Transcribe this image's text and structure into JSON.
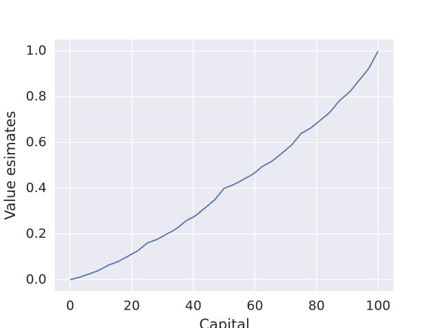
{
  "chart_data": {
    "type": "line",
    "x_label": "Capital",
    "y_label": "Value esimates",
    "x": [
      0,
      1,
      2,
      3,
      4,
      5,
      6,
      7,
      8,
      9,
      10,
      11,
      12,
      13,
      14,
      15,
      16,
      17,
      18,
      19,
      20,
      21,
      22,
      23,
      24,
      25,
      26,
      27,
      28,
      29,
      30,
      31,
      32,
      33,
      34,
      35,
      36,
      37,
      38,
      39,
      40,
      41,
      42,
      43,
      44,
      45,
      46,
      47,
      48,
      49,
      50,
      51,
      52,
      53,
      54,
      55,
      56,
      57,
      58,
      59,
      60,
      61,
      62,
      63,
      64,
      65,
      66,
      67,
      68,
      69,
      70,
      71,
      72,
      73,
      74,
      75,
      76,
      77,
      78,
      79,
      80,
      81,
      82,
      83,
      84,
      85,
      86,
      87,
      88,
      89,
      90,
      91,
      92,
      93,
      94,
      95,
      96,
      97,
      98,
      99,
      100
    ],
    "series": [
      {
        "color": "#4c72b0",
        "values": [
          0,
          0.003,
          0.007,
          0.01,
          0.015,
          0.02,
          0.024,
          0.029,
          0.034,
          0.039,
          0.046,
          0.053,
          0.06,
          0.067,
          0.071,
          0.076,
          0.082,
          0.09,
          0.097,
          0.104,
          0.112,
          0.119,
          0.127,
          0.138,
          0.149,
          0.16,
          0.165,
          0.17,
          0.175,
          0.182,
          0.189,
          0.197,
          0.204,
          0.211,
          0.219,
          0.228,
          0.239,
          0.251,
          0.26,
          0.267,
          0.274,
          0.283,
          0.294,
          0.305,
          0.316,
          0.327,
          0.339,
          0.35,
          0.367,
          0.383,
          0.4,
          0.405,
          0.41,
          0.415,
          0.422,
          0.429,
          0.437,
          0.444,
          0.451,
          0.459,
          0.468,
          0.479,
          0.491,
          0.5,
          0.507,
          0.514,
          0.523,
          0.534,
          0.545,
          0.556,
          0.567,
          0.579,
          0.59,
          0.607,
          0.623,
          0.64,
          0.647,
          0.655,
          0.662,
          0.673,
          0.684,
          0.695,
          0.706,
          0.717,
          0.728,
          0.743,
          0.759,
          0.776,
          0.79,
          0.801,
          0.812,
          0.825,
          0.841,
          0.858,
          0.875,
          0.891,
          0.908,
          0.925,
          0.95,
          0.975,
          1
        ]
      }
    ],
    "xlim": [
      -5,
      105
    ],
    "ylim": [
      -0.05,
      1.05
    ],
    "xticks": [
      0,
      20,
      40,
      60,
      80,
      100
    ],
    "yticks": [
      {
        "value": 0,
        "label": "0.0"
      },
      {
        "value": 0.2,
        "label": "0.2"
      },
      {
        "value": 0.4,
        "label": "0.4"
      },
      {
        "value": 0.6,
        "label": "0.6"
      },
      {
        "value": 0.8,
        "label": "0.8"
      },
      {
        "value": 1,
        "label": "1.0"
      }
    ],
    "grid": true
  }
}
